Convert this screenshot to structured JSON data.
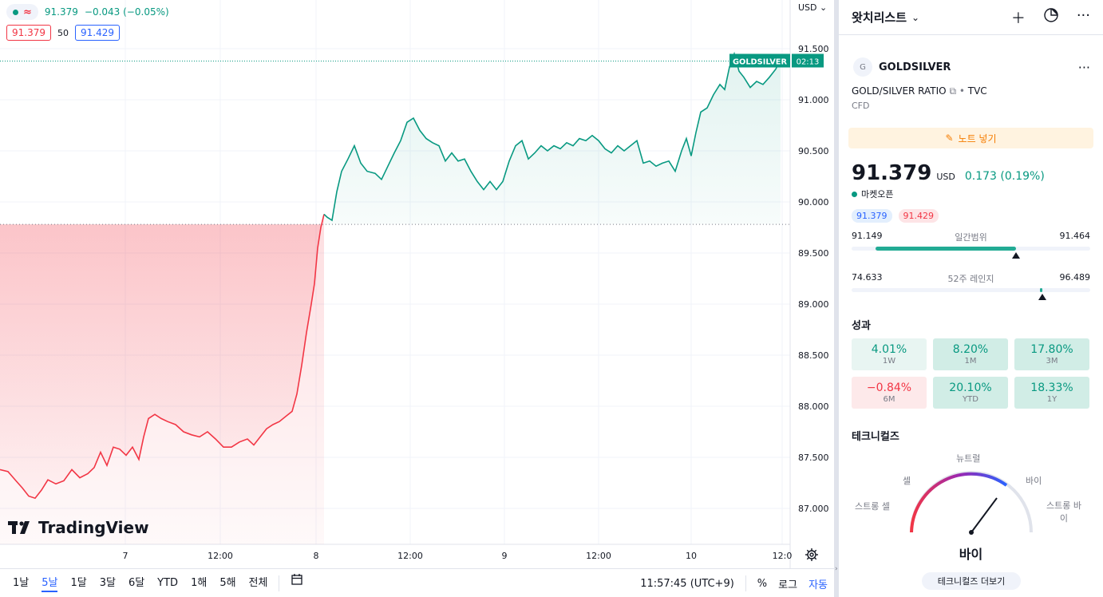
{
  "legend": {
    "indicator": "≈",
    "price": "91.379",
    "change": "−0.043 (−0.05%)",
    "bid": "91.379",
    "spread": "50",
    "ask": "91.429"
  },
  "currency_select": "USD",
  "brand": "TradingView",
  "symbol_label": {
    "name": "GOLDSILVER",
    "countdown": "02:13"
  },
  "bottom_bar": {
    "ranges": [
      "1날",
      "5날",
      "1달",
      "3달",
      "6달",
      "YTD",
      "1해",
      "5해",
      "전체"
    ],
    "active_range": "5날",
    "time": "11:57:45 (UTC+9)",
    "percent": "%",
    "log": "로그",
    "auto": "자동"
  },
  "colors": {
    "up": "#089981",
    "down": "#f23645",
    "accent": "#2962ff"
  },
  "chart_data": {
    "type": "line",
    "series": [
      {
        "name": "GOLDSILVER"
      }
    ],
    "x_ticks": [
      "7",
      "12:00",
      "8",
      "12:00",
      "9",
      "12:00",
      "10",
      "12:0"
    ],
    "y_ticks": [
      "91.500",
      "91.000",
      "90.500",
      "90.000",
      "89.500",
      "89.000",
      "88.500",
      "88.000",
      "87.500",
      "87.000"
    ],
    "ylim": [
      86.9,
      91.65
    ],
    "baseline": 89.78,
    "last_price": 91.379,
    "points": [
      [
        0,
        87.38
      ],
      [
        10,
        87.36
      ],
      [
        20,
        87.27
      ],
      [
        28,
        87.2
      ],
      [
        36,
        87.12
      ],
      [
        44,
        87.1
      ],
      [
        52,
        87.18
      ],
      [
        60,
        87.28
      ],
      [
        70,
        87.24
      ],
      [
        80,
        87.27
      ],
      [
        90,
        87.38
      ],
      [
        100,
        87.3
      ],
      [
        110,
        87.34
      ],
      [
        118,
        87.4
      ],
      [
        126,
        87.55
      ],
      [
        134,
        87.42
      ],
      [
        142,
        87.6
      ],
      [
        150,
        87.58
      ],
      [
        158,
        87.52
      ],
      [
        166,
        87.6
      ],
      [
        174,
        87.48
      ],
      [
        180,
        87.7
      ],
      [
        186,
        87.88
      ],
      [
        194,
        87.92
      ],
      [
        202,
        87.88
      ],
      [
        210,
        87.85
      ],
      [
        220,
        87.82
      ],
      [
        230,
        87.75
      ],
      [
        240,
        87.72
      ],
      [
        250,
        87.7
      ],
      [
        260,
        87.75
      ],
      [
        270,
        87.68
      ],
      [
        280,
        87.6
      ],
      [
        290,
        87.6
      ],
      [
        300,
        87.65
      ],
      [
        310,
        87.68
      ],
      [
        318,
        87.62
      ],
      [
        326,
        87.7
      ],
      [
        334,
        87.78
      ],
      [
        342,
        87.82
      ],
      [
        350,
        87.85
      ],
      [
        358,
        87.9
      ],
      [
        366,
        87.95
      ],
      [
        372,
        88.12
      ],
      [
        378,
        88.4
      ],
      [
        384,
        88.72
      ],
      [
        390,
        89.0
      ],
      [
        394,
        89.2
      ],
      [
        398,
        89.55
      ],
      [
        402,
        89.75
      ],
      [
        406,
        89.88
      ],
      [
        410,
        89.85
      ],
      [
        416,
        89.82
      ],
      [
        422,
        90.1
      ],
      [
        428,
        90.3
      ],
      [
        436,
        90.42
      ],
      [
        444,
        90.55
      ],
      [
        452,
        90.38
      ],
      [
        460,
        90.3
      ],
      [
        470,
        90.28
      ],
      [
        478,
        90.22
      ],
      [
        486,
        90.35
      ],
      [
        494,
        90.48
      ],
      [
        502,
        90.6
      ],
      [
        510,
        90.78
      ],
      [
        518,
        90.82
      ],
      [
        526,
        90.7
      ],
      [
        534,
        90.62
      ],
      [
        542,
        90.58
      ],
      [
        550,
        90.55
      ],
      [
        558,
        90.4
      ],
      [
        566,
        90.48
      ],
      [
        574,
        90.4
      ],
      [
        582,
        90.42
      ],
      [
        590,
        90.3
      ],
      [
        598,
        90.2
      ],
      [
        606,
        90.12
      ],
      [
        614,
        90.2
      ],
      [
        622,
        90.12
      ],
      [
        630,
        90.2
      ],
      [
        638,
        90.4
      ],
      [
        646,
        90.55
      ],
      [
        654,
        90.6
      ],
      [
        662,
        90.42
      ],
      [
        670,
        90.48
      ],
      [
        678,
        90.55
      ],
      [
        686,
        90.5
      ],
      [
        694,
        90.55
      ],
      [
        702,
        90.52
      ],
      [
        710,
        90.58
      ],
      [
        718,
        90.55
      ],
      [
        726,
        90.62
      ],
      [
        734,
        90.6
      ],
      [
        742,
        90.65
      ],
      [
        750,
        90.6
      ],
      [
        758,
        90.52
      ],
      [
        766,
        90.48
      ],
      [
        774,
        90.55
      ],
      [
        782,
        90.5
      ],
      [
        790,
        90.55
      ],
      [
        798,
        90.6
      ],
      [
        806,
        90.38
      ],
      [
        814,
        90.4
      ],
      [
        822,
        90.35
      ],
      [
        830,
        90.38
      ],
      [
        838,
        90.4
      ],
      [
        846,
        90.3
      ],
      [
        854,
        90.5
      ],
      [
        860,
        90.62
      ],
      [
        866,
        90.45
      ],
      [
        872,
        90.68
      ],
      [
        878,
        90.88
      ],
      [
        886,
        90.92
      ],
      [
        894,
        91.05
      ],
      [
        902,
        91.15
      ],
      [
        908,
        91.1
      ],
      [
        914,
        91.32
      ],
      [
        920,
        91.45
      ],
      [
        926,
        91.28
      ],
      [
        932,
        91.22
      ],
      [
        940,
        91.12
      ],
      [
        948,
        91.18
      ],
      [
        956,
        91.15
      ],
      [
        964,
        91.22
      ],
      [
        972,
        91.3
      ],
      [
        978,
        91.4
      ]
    ]
  },
  "watchlist": {
    "title": "왓치리스트",
    "symbol_avatar": "G",
    "symbol": "GOLDSILVER",
    "description": "GOLD/SILVER RATIO",
    "exchange": "TVC",
    "type": "CFD",
    "note_button": "노트 넣기",
    "price": "91.379",
    "currency": "USD",
    "change": "0.173 (0.19%)",
    "market_status": "마켓오픈",
    "bid": "91.379",
    "ask": "91.429",
    "day_range": {
      "low": "91.149",
      "label": "일간범위",
      "high": "91.464",
      "fill_start": 0.1,
      "fill_end": 0.69,
      "marker": 0.69
    },
    "week52_range": {
      "low": "74.633",
      "label": "52주 레인지",
      "high": "96.489",
      "fill_start": 0.79,
      "fill_end": 0.8,
      "marker": 0.8
    },
    "performance_title": "성과",
    "performance": [
      {
        "value": "4.01%",
        "period": "1W",
        "tone": "pos-light"
      },
      {
        "value": "8.20%",
        "period": "1M",
        "tone": "pos-dark"
      },
      {
        "value": "17.80%",
        "period": "3M",
        "tone": "pos-dark"
      },
      {
        "value": "−0.84%",
        "period": "6M",
        "tone": "neg"
      },
      {
        "value": "20.10%",
        "period": "YTD",
        "tone": "pos-dark"
      },
      {
        "value": "18.33%",
        "period": "1Y",
        "tone": "pos-dark"
      }
    ],
    "technicals_title": "테크니컬즈",
    "gauge": {
      "neutral": "뉴트럴",
      "sell": "셀",
      "buy": "바이",
      "strong_sell": "스트롱 셀",
      "strong_buy_1": "스트롱 바",
      "strong_buy_2": "이",
      "result": "바이",
      "more": "테크니컬즈 더보기"
    }
  }
}
